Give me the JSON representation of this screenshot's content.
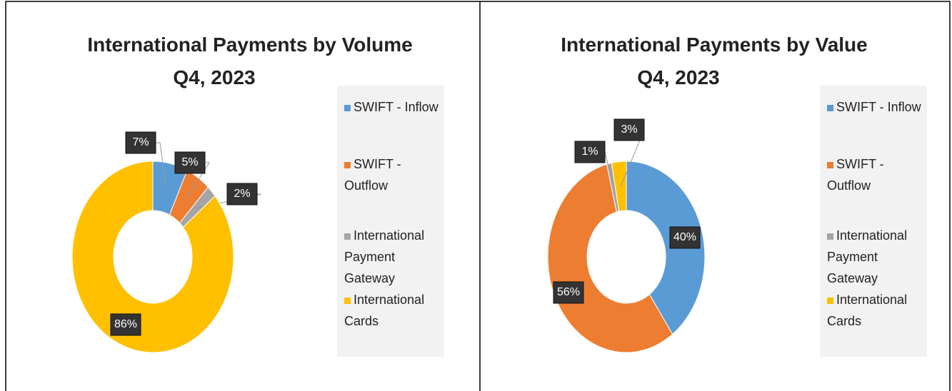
{
  "chart_data": [
    {
      "type": "pie",
      "title": "International Payments by Volume",
      "subtitle": "Q4, 2023",
      "categories": [
        "SWIFT - Inflow",
        "SWIFT - Outflow",
        "International Payment Gateway",
        "International Cards"
      ],
      "values": [
        7,
        5,
        2,
        86
      ],
      "value_labels": [
        "7%",
        "5%",
        "2%",
        "86%"
      ],
      "colors": [
        "#5b9bd5",
        "#ed7d31",
        "#a5a5a5",
        "#ffc000"
      ],
      "legend": "right"
    },
    {
      "type": "pie",
      "title": "International Payments by Value",
      "subtitle": "Q4, 2023",
      "categories": [
        "SWIFT - Inflow",
        "SWIFT - Outflow",
        "International Payment Gateway",
        "International Cards"
      ],
      "values": [
        40,
        56,
        1,
        3
      ],
      "value_labels": [
        "40%",
        "56%",
        "1%",
        "3%"
      ],
      "colors": [
        "#5b9bd5",
        "#ed7d31",
        "#a5a5a5",
        "#ffc000"
      ],
      "legend": "right"
    }
  ]
}
